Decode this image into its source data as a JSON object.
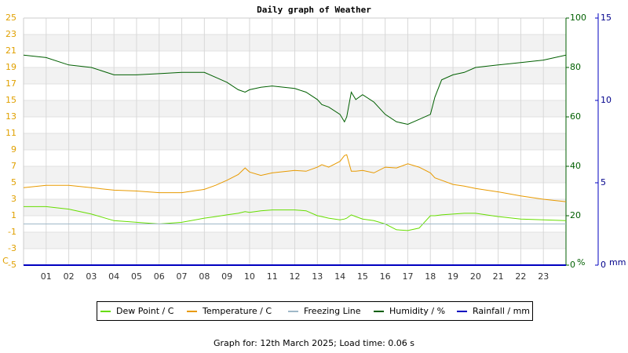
{
  "chart_data": {
    "type": "line",
    "title": "Daily graph of Weather",
    "footer": "Graph for: 12th March 2025; Load time: 0.06 s",
    "ylabel": "C",
    "y2label": "%",
    "y3label": "mm",
    "x": [
      0,
      1,
      2,
      3,
      4,
      5,
      6,
      7,
      8,
      8.5,
      9,
      9.5,
      9.8,
      10,
      10.5,
      11,
      12,
      12.5,
      13,
      13.2,
      13.5,
      14,
      14.2,
      14.3,
      14.5,
      14.7,
      15,
      15.5,
      16,
      16.5,
      17,
      17.5,
      18,
      18.2,
      18.5,
      19,
      19.5,
      20,
      21,
      22,
      23,
      24
    ],
    "xlim": [
      0,
      24
    ],
    "xticks": [
      {
        "value": 1,
        "label": "01"
      },
      {
        "value": 2,
        "label": "02"
      },
      {
        "value": 3,
        "label": "03"
      },
      {
        "value": 4,
        "label": "04"
      },
      {
        "value": 5,
        "label": "05"
      },
      {
        "value": 6,
        "label": "06"
      },
      {
        "value": 7,
        "label": "07"
      },
      {
        "value": 8,
        "label": "08"
      },
      {
        "value": 9,
        "label": "09"
      },
      10,
      11,
      12,
      13,
      14,
      15,
      16,
      17,
      18,
      19,
      20,
      21,
      22,
      23
    ],
    "ylim": [
      -5,
      25
    ],
    "yticks": [
      -5,
      -3,
      -1,
      1,
      3,
      5,
      7,
      9,
      11,
      13,
      15,
      17,
      19,
      21,
      23,
      25
    ],
    "y2lim": [
      0,
      100
    ],
    "y2ticks": [
      0,
      20,
      40,
      60,
      80,
      100
    ],
    "y3lim": [
      0,
      15
    ],
    "y3ticks": [
      0,
      5,
      10,
      15
    ],
    "grid": true,
    "series": [
      {
        "name": "Dew Point / C",
        "color": "#66dd00",
        "values": [
          2.1,
          2.1,
          1.8,
          1.2,
          0.4,
          0.2,
          0.0,
          0.2,
          0.7,
          0.9,
          1.1,
          1.3,
          1.5,
          1.4,
          1.6,
          1.7,
          1.7,
          1.6,
          1.0,
          0.9,
          0.7,
          0.5,
          0.6,
          0.7,
          1.1,
          0.9,
          0.6,
          0.4,
          0.0,
          -0.7,
          -0.8,
          -0.5,
          1.0,
          1.0,
          1.1,
          1.2,
          1.3,
          1.3,
          0.9,
          0.6,
          0.5,
          0.4
        ]
      },
      {
        "name": "Temperature / C",
        "color": "#e89a00",
        "values": [
          4.4,
          4.7,
          4.7,
          4.4,
          4.1,
          4.0,
          3.8,
          3.8,
          4.2,
          4.7,
          5.3,
          6.0,
          6.8,
          6.3,
          5.9,
          6.2,
          6.5,
          6.4,
          6.9,
          7.2,
          6.9,
          7.6,
          8.3,
          8.4,
          6.4,
          6.4,
          6.5,
          6.2,
          6.9,
          6.8,
          7.3,
          6.9,
          6.2,
          5.6,
          5.3,
          4.8,
          4.6,
          4.3,
          3.9,
          3.4,
          3.0,
          2.7
        ]
      },
      {
        "name": "Freezing Line",
        "color": "#9fb8c8",
        "values": [
          0,
          0,
          0,
          0,
          0,
          0,
          0,
          0,
          0,
          0,
          0,
          0,
          0,
          0,
          0,
          0,
          0,
          0,
          0,
          0,
          0,
          0,
          0,
          0,
          0,
          0,
          0,
          0,
          0,
          0,
          0,
          0,
          0,
          0,
          0,
          0,
          0,
          0,
          0,
          0,
          0,
          0
        ]
      },
      {
        "name": "Humidity / %",
        "color": "#005f00",
        "axis": "y2",
        "values": [
          85,
          84,
          81,
          80,
          77,
          77,
          77.5,
          78,
          78,
          76,
          74,
          71,
          70,
          71,
          72,
          72.5,
          71.5,
          70,
          67,
          65,
          64,
          61,
          58,
          60,
          70,
          67,
          69,
          66,
          61,
          58,
          57,
          59,
          61,
          68,
          75,
          77,
          78,
          80,
          81,
          82,
          83,
          85
        ]
      },
      {
        "name": "Rainfall / mm",
        "color": "#0000c0",
        "axis": "y3",
        "values": [
          0,
          0,
          0,
          0,
          0,
          0,
          0,
          0,
          0,
          0,
          0,
          0,
          0,
          0,
          0,
          0,
          0,
          0,
          0,
          0,
          0,
          0,
          0,
          0,
          0,
          0,
          0,
          0,
          0,
          0,
          0,
          0,
          0,
          0,
          0,
          0,
          0,
          0,
          0,
          0,
          0,
          0
        ]
      }
    ]
  }
}
